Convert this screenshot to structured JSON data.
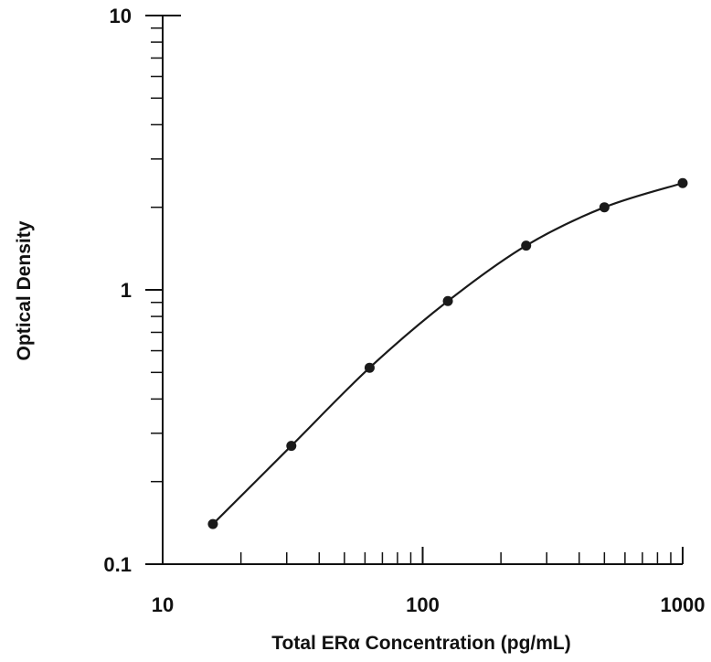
{
  "chart_data": {
    "type": "scatter",
    "title": "",
    "xlabel": "Total ERα Concentration (pg/mL)",
    "ylabel": "Optical Density",
    "x_scale": "log",
    "y_scale": "log",
    "xlim": [
      10,
      1000
    ],
    "ylim": [
      0.1,
      10
    ],
    "x_tick_labels": [
      "10",
      "100",
      "1000"
    ],
    "y_tick_labels": [
      "0.1",
      "1",
      "10"
    ],
    "grid": false,
    "legend": "none",
    "series": [
      {
        "x": [
          15.6,
          31.25,
          62.5,
          125,
          250,
          500,
          1000
        ],
        "y": [
          0.14,
          0.27,
          0.52,
          0.91,
          1.45,
          2.0,
          2.45
        ]
      }
    ],
    "fit_curve": "smooth",
    "colors": {
      "marks": "#1a1a1a",
      "axis": "#111111"
    }
  }
}
